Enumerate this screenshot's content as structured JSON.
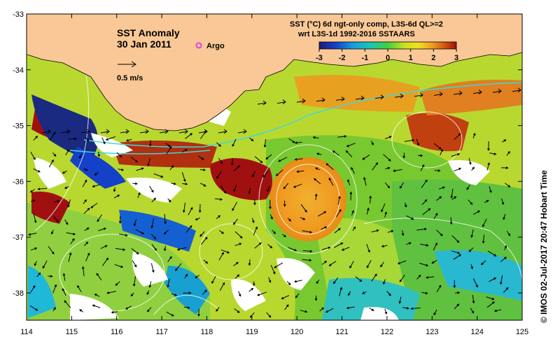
{
  "map": {
    "title": "SST Anomaly",
    "date": "30 Jan 2011",
    "argo_label": "Argo",
    "vector_scale_label": "0.5 m/s",
    "product_line1": "SST (°C) 6d ngt-only comp, L3S-6d QL>=2",
    "product_line2": "wrt L3S-1d 1992-2016 SSTAARS",
    "credit": "© IMOS 02-Jul-2017 20:47 Hobart Time",
    "lon_ticks": [
      "114",
      "115",
      "116",
      "117",
      "118",
      "119",
      "120",
      "121",
      "122",
      "123",
      "124",
      "125"
    ],
    "lat_ticks": [
      "-33",
      "-34",
      "-35",
      "-36",
      "-37",
      "-38"
    ],
    "colorbar_ticks": [
      "-3",
      "-2",
      "-1",
      "0",
      "1",
      "2",
      "3"
    ],
    "colors": {
      "land": "#f9c896",
      "cold": "#1a2a80",
      "warm": "#9c0f0f",
      "argo": "#e040e0"
    }
  }
}
